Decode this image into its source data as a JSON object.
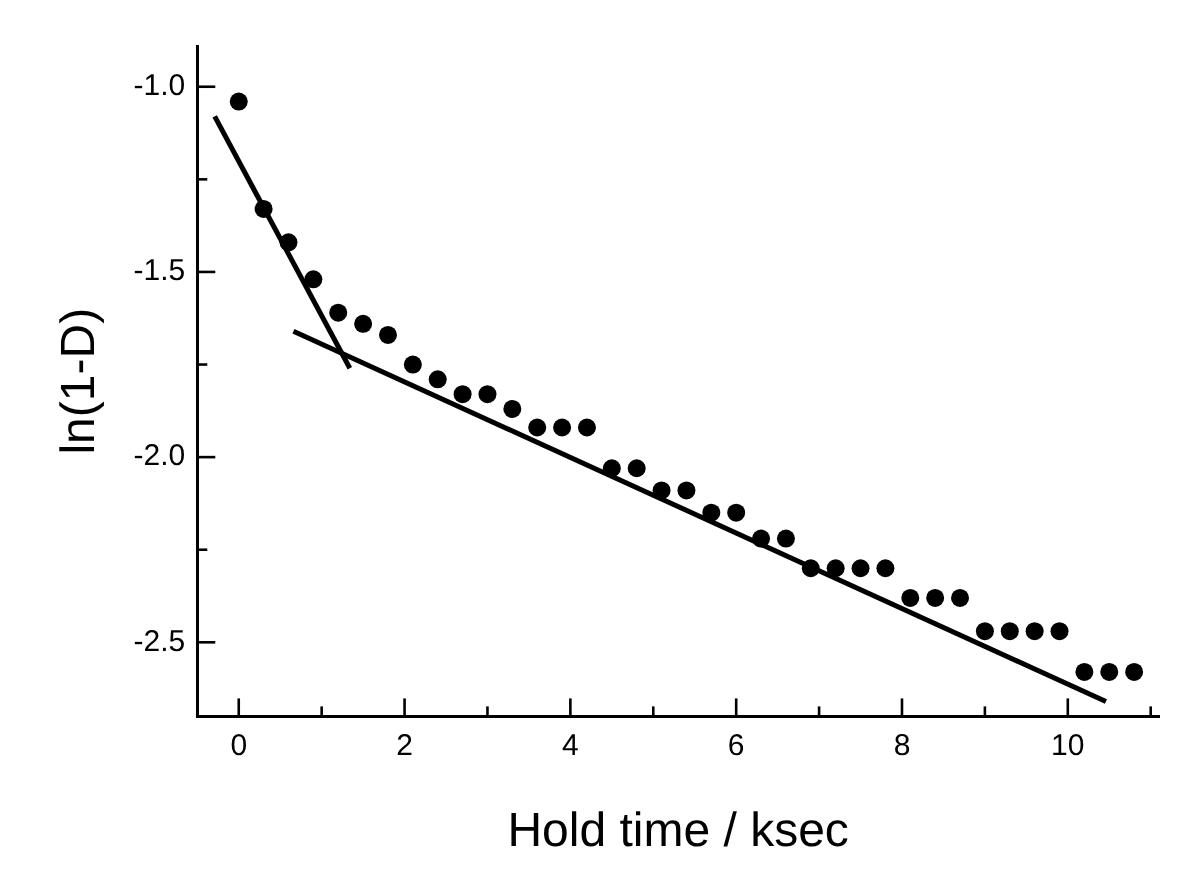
{
  "chart_data": {
    "type": "scatter",
    "xlabel": "Hold time / ksec",
    "ylabel": "ln(1-D)",
    "xlim": [
      -0.5,
      11.1
    ],
    "ylim": [
      -2.7,
      -0.89
    ],
    "xticks": [
      0,
      {
        "value": 1,
        "label": null
      },
      2,
      {
        "value": 3,
        "label": null
      },
      4,
      {
        "value": 5,
        "label": null
      },
      6,
      {
        "value": 7,
        "label": null
      },
      8,
      {
        "value": 9,
        "label": null
      },
      10,
      {
        "value": 11,
        "label": null
      }
    ],
    "yticks": [
      {
        "value": -1,
        "label": "-1.0"
      },
      {
        "value": -1.25,
        "label": null
      },
      {
        "value": -1.5,
        "label": "-1.5"
      },
      {
        "value": -1.75,
        "label": null
      },
      {
        "value": -2,
        "label": "-2.0"
      },
      {
        "value": -2.25,
        "label": null
      },
      {
        "value": -2.5,
        "label": "-2.5"
      }
    ],
    "grid": false,
    "legend": false,
    "marker": "circle",
    "series": [
      {
        "color": "#000000",
        "x": [
          0,
          0.3,
          0.6,
          0.9,
          1.2,
          1.5,
          1.8,
          2.1,
          2.4,
          2.7,
          3.0,
          3.3,
          3.6,
          3.9,
          4.2,
          4.5,
          4.8,
          5.1,
          5.4,
          5.7,
          6.0,
          6.3,
          6.6,
          6.9,
          7.2,
          7.5,
          7.8,
          8.1,
          8.4,
          8.7,
          9.0,
          9.3,
          9.6,
          9.9,
          10.2,
          10.5,
          10.8
        ],
        "values": [
          -1.04,
          -1.33,
          -1.42,
          -1.52,
          -1.61,
          -1.64,
          -1.67,
          -1.75,
          -1.79,
          -1.83,
          -1.83,
          -1.87,
          -1.92,
          -1.92,
          -1.92,
          -2.03,
          -2.03,
          -2.09,
          -2.09,
          -2.15,
          -2.15,
          -2.22,
          -2.22,
          -2.3,
          -2.3,
          -2.3,
          -2.3,
          -2.38,
          -2.38,
          -2.38,
          -2.47,
          -2.47,
          -2.47,
          -2.47,
          -2.58,
          -2.58,
          -2.58
        ]
      },
      {
        "type": "line",
        "color": "#000000",
        "marker": "none",
        "x": [
          -0.29,
          1.34
        ],
        "values": [
          -1.08,
          -1.76
        ]
      },
      {
        "type": "line",
        "color": "#000000",
        "marker": "none",
        "x": [
          0.66,
          10.46
        ],
        "values": [
          -1.66,
          -2.66
        ]
      }
    ]
  }
}
